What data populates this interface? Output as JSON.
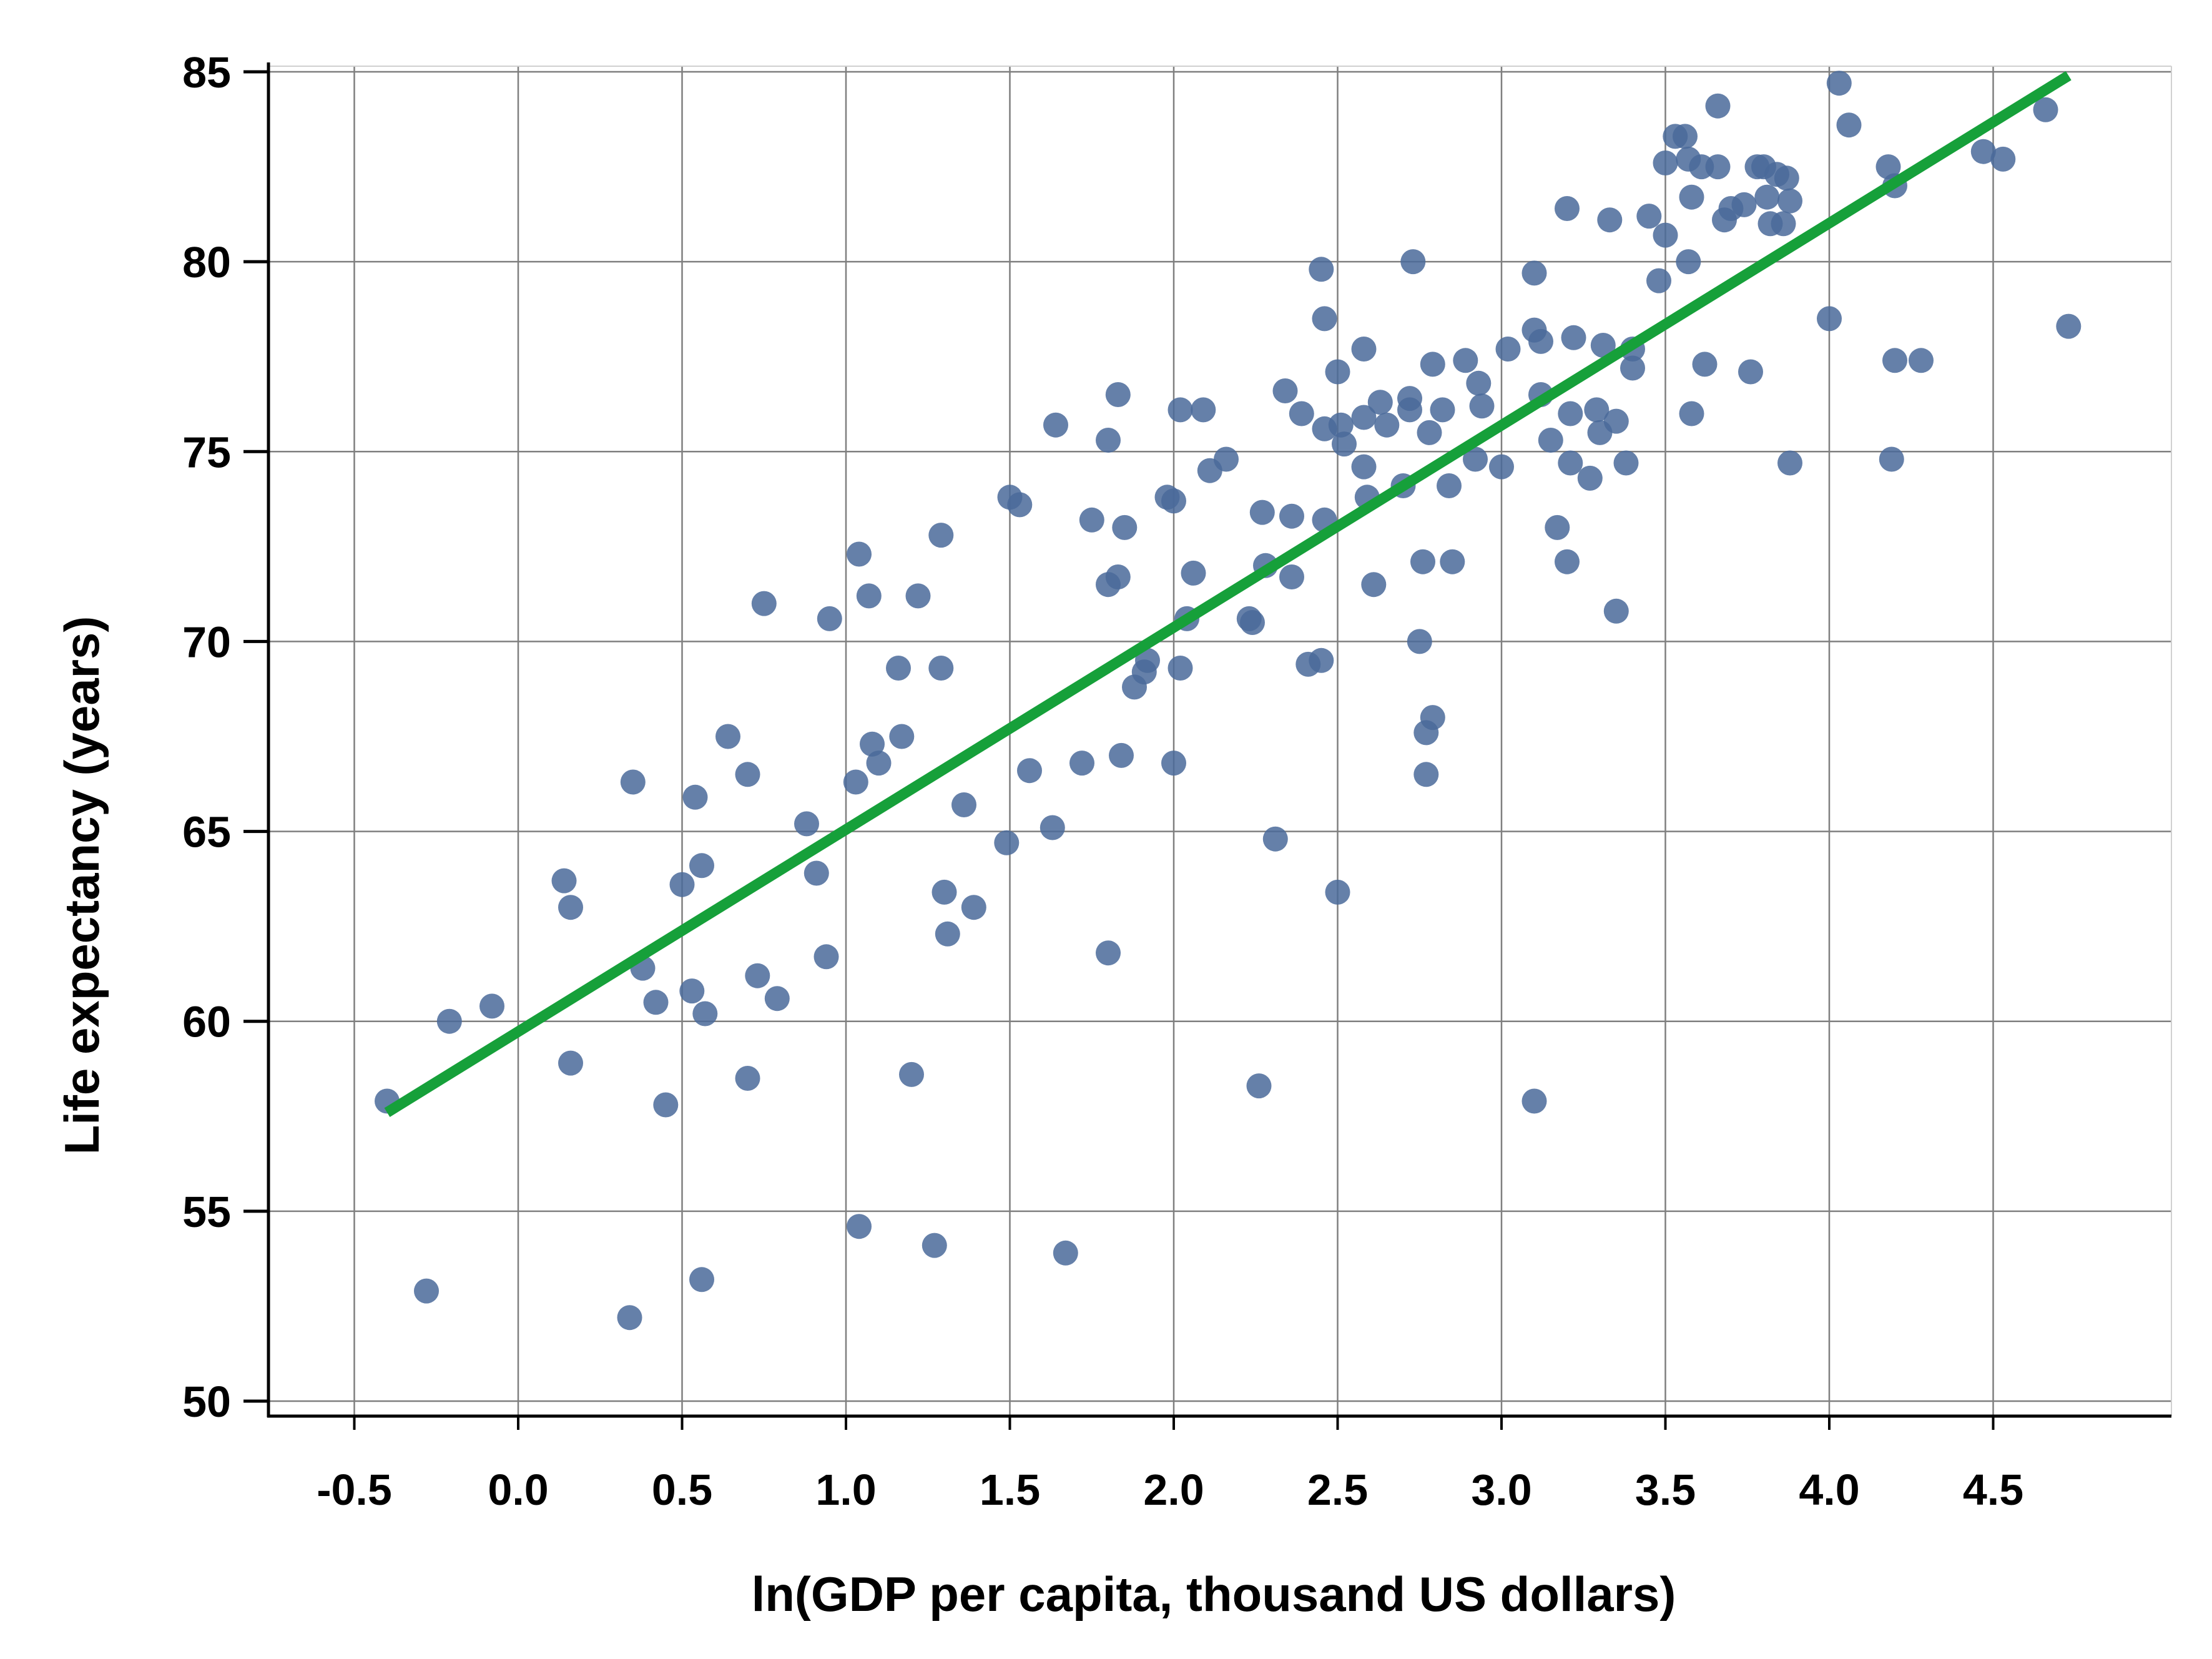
{
  "chart_data": {
    "type": "scatter",
    "title": "",
    "xlabel": "ln(GDP per capita, thousand US dollars)",
    "ylabel": "Life expectancy  (years)",
    "xlim": [
      -0.76,
      5.04
    ],
    "ylim": [
      50,
      85
    ],
    "xticks": [
      "-0.5",
      "0.0",
      "0.5",
      "1.0",
      "1.5",
      "2.0",
      "2.5",
      "3.0",
      "3.5",
      "4.0",
      "4.5"
    ],
    "yticks": [
      "50",
      "55",
      "60",
      "65",
      "70",
      "75",
      "80",
      "85"
    ],
    "grid": true,
    "legend": "none",
    "colors": {
      "points": "#4a6a9a",
      "trend": "#16a03a",
      "grid": "#7f7f7f",
      "axis": "#000000"
    },
    "series": [
      {
        "points": [
          [
            -0.4,
            57.9
          ],
          [
            -0.28,
            52.9
          ],
          [
            -0.21,
            60.0
          ],
          [
            -0.08,
            60.4
          ],
          [
            0.14,
            63.7
          ],
          [
            0.16,
            63.0
          ],
          [
            0.16,
            58.9
          ],
          [
            0.35,
            66.3
          ],
          [
            0.34,
            52.2
          ],
          [
            0.38,
            61.4
          ],
          [
            0.42,
            60.5
          ],
          [
            0.45,
            57.8
          ],
          [
            0.5,
            63.6
          ],
          [
            0.53,
            60.8
          ],
          [
            0.54,
            65.9
          ],
          [
            0.56,
            64.1
          ],
          [
            0.56,
            53.2
          ],
          [
            0.57,
            60.2
          ],
          [
            0.64,
            67.5
          ],
          [
            0.7,
            66.5
          ],
          [
            0.7,
            58.5
          ],
          [
            0.73,
            61.2
          ],
          [
            0.75,
            71.0
          ],
          [
            0.79,
            60.6
          ],
          [
            0.88,
            65.2
          ],
          [
            0.91,
            63.9
          ],
          [
            0.94,
            61.7
          ],
          [
            0.95,
            70.6
          ],
          [
            1.03,
            66.3
          ],
          [
            1.04,
            72.3
          ],
          [
            1.04,
            54.6
          ],
          [
            1.07,
            71.2
          ],
          [
            1.08,
            67.3
          ],
          [
            1.1,
            66.8
          ],
          [
            1.16,
            69.3
          ],
          [
            1.17,
            67.5
          ],
          [
            1.2,
            58.6
          ],
          [
            1.22,
            71.2
          ],
          [
            1.27,
            54.1
          ],
          [
            1.29,
            72.8
          ],
          [
            1.29,
            69.3
          ],
          [
            1.3,
            63.4
          ],
          [
            1.31,
            62.3
          ],
          [
            1.36,
            65.7
          ],
          [
            1.39,
            63.0
          ],
          [
            1.49,
            64.7
          ],
          [
            1.5,
            73.8
          ],
          [
            1.53,
            73.6
          ],
          [
            1.56,
            66.6
          ],
          [
            1.63,
            65.1
          ],
          [
            1.64,
            75.7
          ],
          [
            1.67,
            53.9
          ],
          [
            1.72,
            66.8
          ],
          [
            1.75,
            73.2
          ],
          [
            1.8,
            75.3
          ],
          [
            1.8,
            71.5
          ],
          [
            1.8,
            61.8
          ],
          [
            1.83,
            76.5
          ],
          [
            1.83,
            71.7
          ],
          [
            1.84,
            67.0
          ],
          [
            1.85,
            73.0
          ],
          [
            1.88,
            68.8
          ],
          [
            1.91,
            69.2
          ],
          [
            1.92,
            69.5
          ],
          [
            1.98,
            73.8
          ],
          [
            2.0,
            73.7
          ],
          [
            2.0,
            66.8
          ],
          [
            2.02,
            76.1
          ],
          [
            2.02,
            69.3
          ],
          [
            2.04,
            70.6
          ],
          [
            2.06,
            71.8
          ],
          [
            2.09,
            76.1
          ],
          [
            2.11,
            74.5
          ],
          [
            2.16,
            74.8
          ],
          [
            2.23,
            70.6
          ],
          [
            2.24,
            70.5
          ],
          [
            2.26,
            58.3
          ],
          [
            2.27,
            73.4
          ],
          [
            2.28,
            72.0
          ],
          [
            2.31,
            64.8
          ],
          [
            2.34,
            76.6
          ],
          [
            2.36,
            73.3
          ],
          [
            2.36,
            71.7
          ],
          [
            2.39,
            76.0
          ],
          [
            2.41,
            69.4
          ],
          [
            2.45,
            79.8
          ],
          [
            2.45,
            69.5
          ],
          [
            2.46,
            78.5
          ],
          [
            2.46,
            75.6
          ],
          [
            2.46,
            73.2
          ],
          [
            2.5,
            77.1
          ],
          [
            2.5,
            63.4
          ],
          [
            2.51,
            75.7
          ],
          [
            2.52,
            75.2
          ],
          [
            2.58,
            77.7
          ],
          [
            2.58,
            75.9
          ],
          [
            2.58,
            74.6
          ],
          [
            2.59,
            73.8
          ],
          [
            2.61,
            71.5
          ],
          [
            2.63,
            76.3
          ],
          [
            2.65,
            75.7
          ],
          [
            2.7,
            74.1
          ],
          [
            2.72,
            76.4
          ],
          [
            2.72,
            76.1
          ],
          [
            2.73,
            80.0
          ],
          [
            2.75,
            70.0
          ],
          [
            2.76,
            72.1
          ],
          [
            2.77,
            67.6
          ],
          [
            2.77,
            66.5
          ],
          [
            2.78,
            75.5
          ],
          [
            2.79,
            77.3
          ],
          [
            2.79,
            68.0
          ],
          [
            2.82,
            76.1
          ],
          [
            2.84,
            74.1
          ],
          [
            2.85,
            72.1
          ],
          [
            2.89,
            77.4
          ],
          [
            2.92,
            74.8
          ],
          [
            2.93,
            76.8
          ],
          [
            2.94,
            76.2
          ],
          [
            3.0,
            74.6
          ],
          [
            3.02,
            77.7
          ],
          [
            3.1,
            79.7
          ],
          [
            3.1,
            78.2
          ],
          [
            3.1,
            57.9
          ],
          [
            3.12,
            77.9
          ],
          [
            3.12,
            76.5
          ],
          [
            3.15,
            75.3
          ],
          [
            3.17,
            73.0
          ],
          [
            3.2,
            81.4
          ],
          [
            3.2,
            72.1
          ],
          [
            3.21,
            76.0
          ],
          [
            3.21,
            74.7
          ],
          [
            3.22,
            78.0
          ],
          [
            3.27,
            74.3
          ],
          [
            3.29,
            76.1
          ],
          [
            3.3,
            75.5
          ],
          [
            3.31,
            77.8
          ],
          [
            3.33,
            81.1
          ],
          [
            3.35,
            75.8
          ],
          [
            3.35,
            70.8
          ],
          [
            3.38,
            74.7
          ],
          [
            3.4,
            77.7
          ],
          [
            3.4,
            77.2
          ],
          [
            3.45,
            81.2
          ],
          [
            3.48,
            79.5
          ],
          [
            3.5,
            82.6
          ],
          [
            3.5,
            80.7
          ],
          [
            3.53,
            83.3
          ],
          [
            3.56,
            83.3
          ],
          [
            3.57,
            82.7
          ],
          [
            3.57,
            80.0
          ],
          [
            3.58,
            81.7
          ],
          [
            3.58,
            76.0
          ],
          [
            3.61,
            82.5
          ],
          [
            3.62,
            77.3
          ],
          [
            3.66,
            84.1
          ],
          [
            3.66,
            82.5
          ],
          [
            3.68,
            81.1
          ],
          [
            3.7,
            81.4
          ],
          [
            3.74,
            81.5
          ],
          [
            3.76,
            77.1
          ],
          [
            3.78,
            82.5
          ],
          [
            3.8,
            82.5
          ],
          [
            3.81,
            81.7
          ],
          [
            3.82,
            81.0
          ],
          [
            3.84,
            82.3
          ],
          [
            3.86,
            81.0
          ],
          [
            3.87,
            82.2
          ],
          [
            3.88,
            81.6
          ],
          [
            3.88,
            74.7
          ],
          [
            4.0,
            78.5
          ],
          [
            4.03,
            84.7
          ],
          [
            4.06,
            83.6
          ],
          [
            4.18,
            82.5
          ],
          [
            4.19,
            74.8
          ],
          [
            4.2,
            82.0
          ],
          [
            4.2,
            77.4
          ],
          [
            4.28,
            77.4
          ],
          [
            4.47,
            82.9
          ],
          [
            4.53,
            82.7
          ],
          [
            4.66,
            84.0
          ],
          [
            4.73,
            78.3
          ]
        ]
      }
    ],
    "trend_line": {
      "x": [
        -0.4,
        4.73
      ],
      "y": [
        57.6,
        84.9
      ]
    }
  }
}
